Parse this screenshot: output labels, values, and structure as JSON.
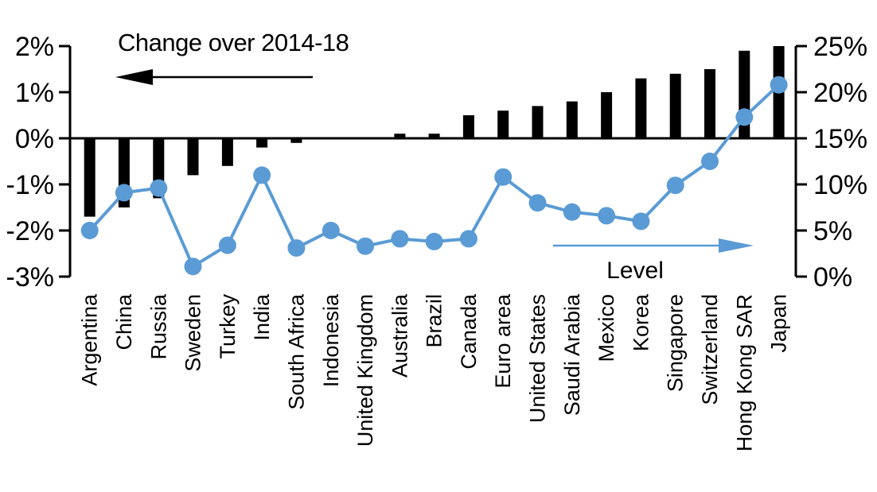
{
  "chart_data": {
    "type": "bar+line (dual axis)",
    "title": "",
    "categories": [
      "Argentina",
      "China",
      "Russia",
      "Sweden",
      "Turkey",
      "India",
      "South Africa",
      "Indonesia",
      "United Kingdom",
      "Australia",
      "Brazil",
      "Canada",
      "Euro area",
      "United States",
      "Saudi Arabia",
      "Mexico",
      "Korea",
      "Singapore",
      "Switzerland",
      "Hong Kong SAR",
      "Japan"
    ],
    "series": [
      {
        "name": "Change over 2014-18",
        "type": "bar",
        "axis": "left",
        "color": "#000000",
        "values": [
          -1.7,
          -1.5,
          -1.3,
          -0.8,
          -0.6,
          -0.2,
          -0.1,
          0,
          0,
          0.1,
          0.1,
          0.5,
          0.6,
          0.7,
          0.8,
          1.0,
          1.3,
          1.4,
          1.5,
          1.9,
          2.0
        ]
      },
      {
        "name": "Level",
        "type": "line",
        "axis": "right",
        "color": "#5B9BD5",
        "values": [
          5.0,
          9.1,
          9.6,
          1.1,
          3.4,
          11.0,
          3.1,
          5.0,
          3.3,
          4.1,
          3.8,
          4.1,
          10.8,
          8.0,
          7.0,
          6.6,
          6.0,
          9.9,
          12.5,
          17.3,
          20.8
        ]
      }
    ],
    "left_axis": {
      "min": -3,
      "max": 2,
      "tick_labels_top_to_bottom": [
        "2%",
        "1%",
        "0%",
        "-1%",
        "-2%",
        "-3%"
      ]
    },
    "right_axis": {
      "min": 0,
      "max": 25,
      "tick_labels_top_to_bottom": [
        "25%",
        "20%",
        "15%",
        "10%",
        "5%",
        "0%"
      ]
    },
    "annotations": {
      "left_series_label": "Change over 2014-18",
      "right_series_label": "Level",
      "left_arrow_color": "#000000",
      "right_arrow_color": "#5B9BD5"
    },
    "grid": "off",
    "legend_position": "in-plot annotations with arrows"
  }
}
